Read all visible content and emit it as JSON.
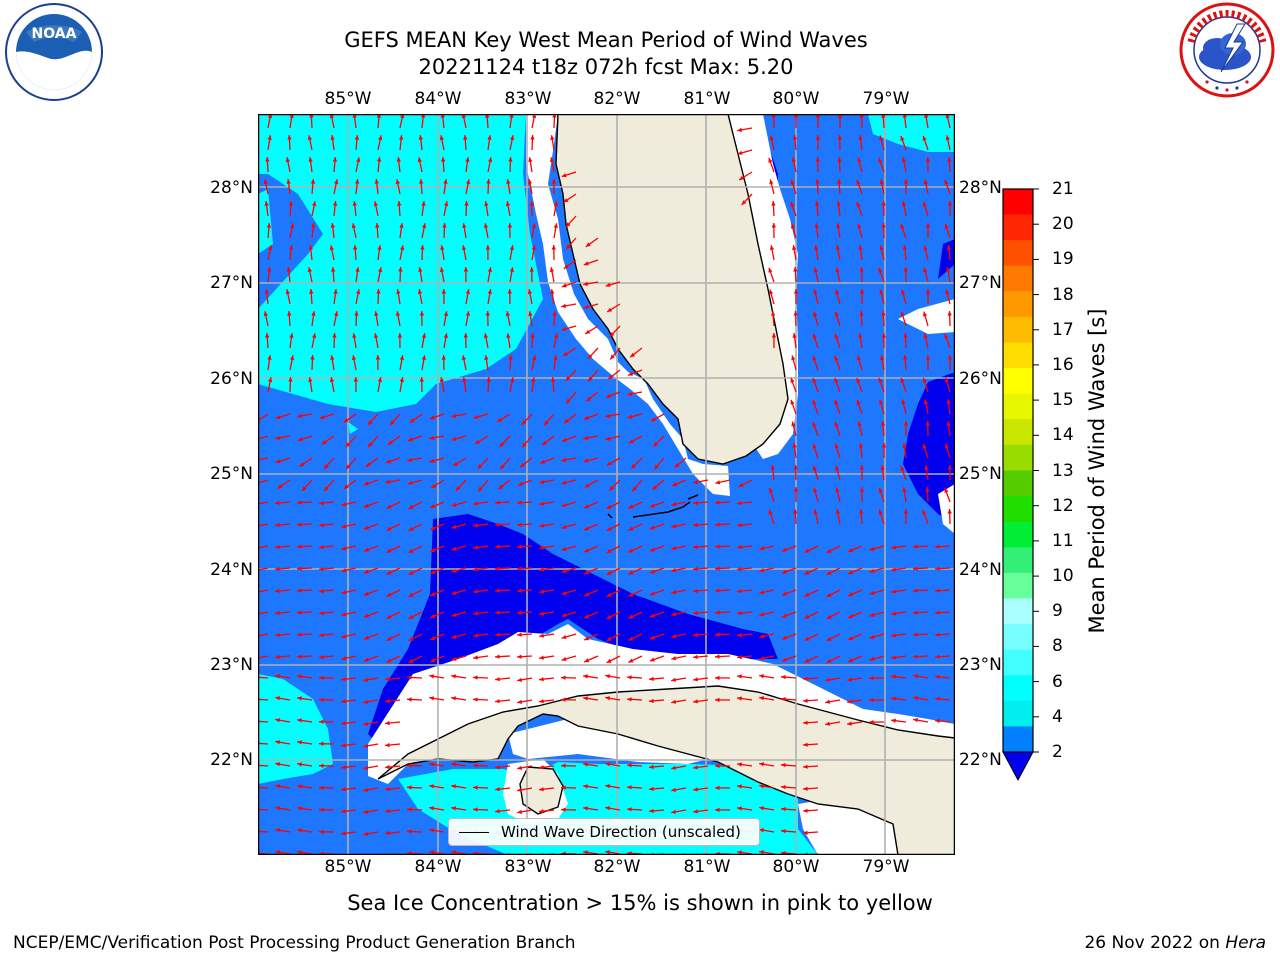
{
  "title_line1": "GEFS MEAN Key West Mean Period of Wind Waves",
  "title_line2": "20221124 t18z 072h fcst   Max: 5.20",
  "lon_ticks": [
    "85°W",
    "84°W",
    "83°W",
    "82°W",
    "81°W",
    "80°W",
    "79°W"
  ],
  "lat_ticks": [
    "28°N",
    "27°N",
    "26°N",
    "25°N",
    "24°N",
    "23°N",
    "22°N"
  ],
  "colorbar": {
    "label": "Mean Period of Wind Waves [s]",
    "ticks": [
      "21",
      "20",
      "19",
      "18",
      "17",
      "16",
      "15",
      "14",
      "13",
      "12",
      "11",
      "10",
      "9",
      "8",
      "6",
      "4",
      "2"
    ],
    "colors_top_to_bottom": [
      "#ff0000",
      "#ff2600",
      "#ff5000",
      "#ff7a00",
      "#ff9900",
      "#ffbb00",
      "#ffdd00",
      "#ffff00",
      "#e6f500",
      "#c8e600",
      "#99dd00",
      "#55cc00",
      "#22dd00",
      "#00ee33",
      "#33ee77",
      "#66ff99",
      "#aaffff",
      "#77ffff",
      "#44ffff",
      "#00ffff",
      "#00eeee",
      "#0080ff"
    ],
    "extend_color": "#0000ee"
  },
  "colors": {
    "ocean_2_4": "#1e78ff",
    "ocean_4_6": "#00ffff",
    "ocean_lt2": "#0000ee",
    "land": "#efecdc",
    "arrow": "#ff0000",
    "grid": "#b0b0b0"
  },
  "legend_label": "Wind Wave Direction (unscaled)",
  "caption": "Sea Ice Concentration > 15% is shown in pink to yellow",
  "footer_left": "NCEP/EMC/Verification Post Processing Product Generation Branch",
  "footer_right_date": "26 Nov 2022 on",
  "footer_right_host": "Hera",
  "logos": {
    "left": "noaa-logo",
    "right": "nws-logo"
  }
}
